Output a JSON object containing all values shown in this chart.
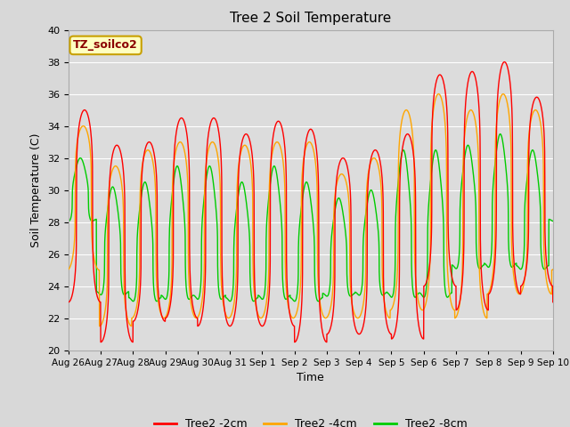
{
  "title": "Tree 2 Soil Temperature",
  "xlabel": "Time",
  "ylabel": "Soil Temperature (C)",
  "ylim": [
    20,
    40
  ],
  "annotation_text": "TZ_soilco2",
  "annotation_color": "#8B0000",
  "annotation_bg": "#FFFFC0",
  "annotation_border": "#C8A000",
  "fig_bg": "#E0E0E0",
  "plot_bg": "#DCDCDC",
  "grid_color": "#FFFFFF",
  "line_colors": {
    "2cm": "#FF0000",
    "4cm": "#FFA500",
    "8cm": "#00CC00"
  },
  "legend_labels": [
    "Tree2 -2cm",
    "Tree2 -4cm",
    "Tree2 -8cm"
  ],
  "x_tick_labels": [
    "Aug 26",
    "Aug 27",
    "Aug 28",
    "Aug 29",
    "Aug 30",
    "Aug 31",
    "Sep 1",
    "Sep 2",
    "Sep 3",
    "Sep 4",
    "Sep 5",
    "Sep 6",
    "Sep 7",
    "Sep 8",
    "Sep 9",
    "Sep 10"
  ],
  "peaks_2cm": [
    35.0,
    32.8,
    33.0,
    34.5,
    34.5,
    33.5,
    34.3,
    33.8,
    32.0,
    32.5,
    33.5,
    37.2,
    37.4,
    38.0,
    35.8
  ],
  "troughs_2cm": [
    23.0,
    20.5,
    21.8,
    22.0,
    21.5,
    21.5,
    21.5,
    20.5,
    21.0,
    21.0,
    20.7,
    24.0,
    22.5,
    23.5,
    24.0
  ],
  "peaks_4cm": [
    34.0,
    31.5,
    32.5,
    33.0,
    33.0,
    32.8,
    33.0,
    33.0,
    31.0,
    32.0,
    35.0,
    36.0,
    35.0,
    36.0,
    35.0
  ],
  "troughs_4cm": [
    25.0,
    21.5,
    22.0,
    22.0,
    22.0,
    22.0,
    22.0,
    22.0,
    22.0,
    22.0,
    22.5,
    22.5,
    22.0,
    23.5,
    23.5
  ],
  "peaks_8cm": [
    32.0,
    30.2,
    30.5,
    31.5,
    31.5,
    30.5,
    31.5,
    30.5,
    29.5,
    30.0,
    32.5,
    32.5,
    32.8,
    33.5,
    32.5
  ],
  "troughs_8cm": [
    27.5,
    22.5,
    22.0,
    22.0,
    22.0,
    22.0,
    22.0,
    22.0,
    22.5,
    22.5,
    22.0,
    22.0,
    24.0,
    24.0,
    24.0
  ]
}
